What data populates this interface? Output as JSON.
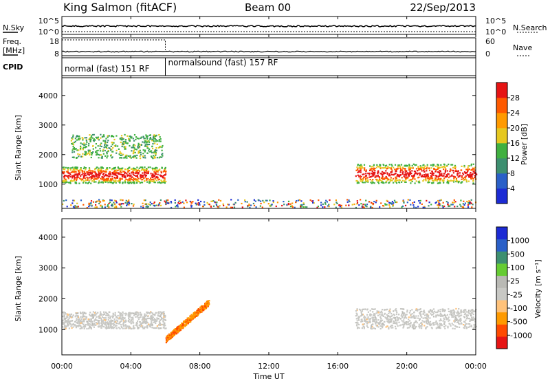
{
  "header": {
    "station": "King Salmon (fitACF)",
    "beam": "Beam 00",
    "date": "22/Sep/2013"
  },
  "top_panels": {
    "nsky_label": "N.Sky",
    "nsearch_label": "N.Search",
    "nsky_ticks": [
      "10^5",
      "10^0"
    ],
    "nsearch_ticks": [
      "10^5",
      "10^0"
    ],
    "freq_label": "Freq.",
    "freq_unit": "[MHz]",
    "freq_ticks": [
      "18",
      "8"
    ],
    "nave_label": "Nave",
    "nave_ticks": [
      "60",
      "0"
    ],
    "cpid_label": "CPID",
    "cpid_segments": [
      {
        "label": "normal (fast) 151 RF",
        "start_hour": 0,
        "end_hour": 6
      },
      {
        "label": "normalsound (fast) 157 RF",
        "start_hour": 6,
        "end_hour": 24
      }
    ]
  },
  "x_axis": {
    "label": "Time UT",
    "ticks": [
      "00:00",
      "04:00",
      "08:00",
      "12:00",
      "16:00",
      "20:00",
      "00:00"
    ],
    "range_hours": [
      0,
      24
    ]
  },
  "colors": {
    "power": [
      "#1c2bd4",
      "#2a60c8",
      "#3d8f70",
      "#40b040",
      "#e6c820",
      "#ff9a00",
      "#ff5a00",
      "#e61414"
    ],
    "velocity": [
      "#e61414",
      "#ff4a00",
      "#ff9a00",
      "#ffc27a",
      "#c8c8c4",
      "#b9b9b4",
      "#66cc33",
      "#3d8f70",
      "#2a60c8",
      "#1c2bd4"
    ]
  },
  "chart_data": [
    {
      "type": "heatmap",
      "title": "Power",
      "xlabel": "Time UT",
      "ylabel": "Slant Range [km]",
      "ylim": [
        180,
        4600
      ],
      "y_ticks": [
        "1000",
        "2000",
        "3000",
        "4000"
      ],
      "colorbar": {
        "label": "Power [dB]",
        "ticks": [
          "4",
          "8",
          "12",
          "16",
          "20",
          "24",
          "28"
        ]
      },
      "features": [
        {
          "name": "main echo band",
          "start_hour": 0.0,
          "end_hour": 6.0,
          "range_km": [
            1050,
            1600
          ],
          "level": "high"
        },
        {
          "name": "upper echo band",
          "start_hour": 0.5,
          "end_hour": 5.8,
          "range_km": [
            1900,
            2700
          ],
          "level": "medium"
        },
        {
          "name": "evening band",
          "start_hour": 17.0,
          "end_hour": 24.0,
          "range_km": [
            1050,
            1700
          ],
          "level": "high"
        },
        {
          "name": "near-range scatter",
          "start_hour": 0.0,
          "end_hour": 24.0,
          "range_km": [
            200,
            500
          ],
          "level": "low"
        }
      ]
    },
    {
      "type": "heatmap",
      "title": "Velocity",
      "xlabel": "Time UT",
      "ylabel": "Slant Range [km]",
      "ylim": [
        180,
        4600
      ],
      "y_ticks": [
        "1000",
        "2000",
        "3000",
        "4000"
      ],
      "colorbar": {
        "label": "Velocity [m s⁻¹]",
        "ticks": [
          "1000",
          "500",
          "100",
          "25",
          "-25",
          "-100",
          "-500",
          "-1000"
        ]
      },
      "features": [
        {
          "name": "ground scatter band",
          "start_hour": 0.0,
          "end_hour": 6.0,
          "range_km": [
            1050,
            1600
          ],
          "velocity": "near zero"
        },
        {
          "name": "receding streak",
          "start_hour": 6.0,
          "end_hour": 8.5,
          "range_km": [
            700,
            1900
          ],
          "velocity": "negative"
        },
        {
          "name": "evening ground scatter",
          "start_hour": 17.0,
          "end_hour": 24.0,
          "range_km": [
            1050,
            1700
          ],
          "velocity": "near zero"
        }
      ]
    }
  ]
}
